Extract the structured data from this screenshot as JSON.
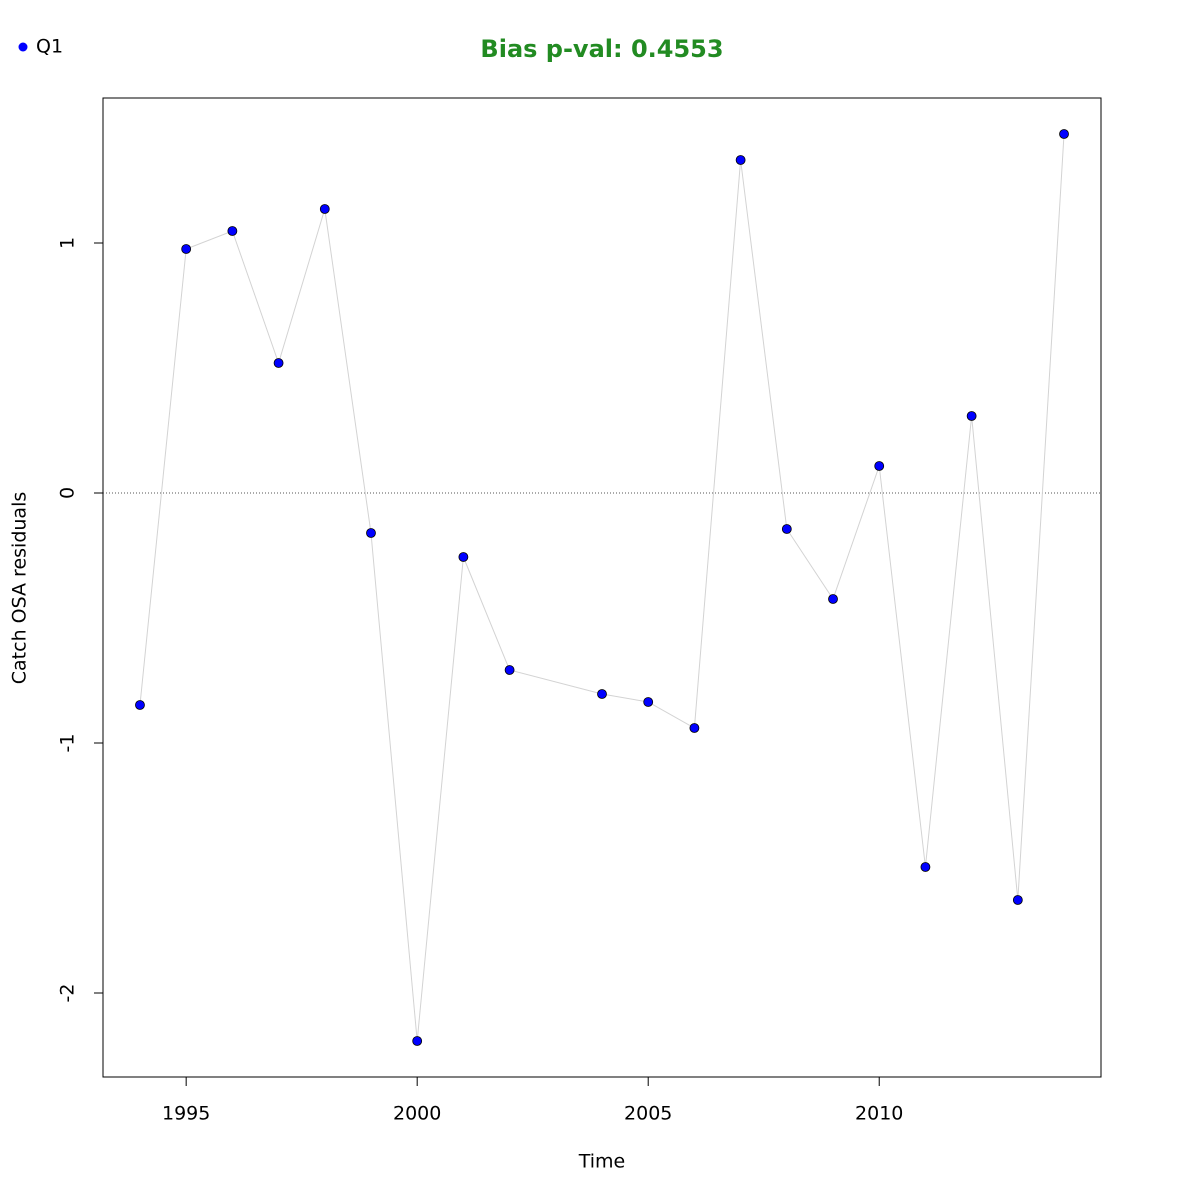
{
  "chart_data": {
    "type": "line",
    "title": "Bias p-val: 0.4553",
    "title_color": "#228b22",
    "x_label": "Time",
    "y_label": "Catch OSA residuals",
    "x": [
      1994,
      1995,
      1996,
      1997,
      1998,
      1999,
      2000,
      2001,
      2002,
      2004,
      2005,
      2006,
      2007,
      2008,
      2009,
      2010,
      2011,
      2012,
      2013,
      2014
    ],
    "series": [
      {
        "name": "Q1",
        "color": "#0000ff",
        "line_color": "#d3d3d3",
        "values": [
          -0.848,
          0.976,
          1.048,
          0.52,
          1.136,
          -0.16,
          -2.192,
          -0.256,
          -0.708,
          -0.804,
          -0.836,
          -0.94,
          1.332,
          -0.144,
          -0.424,
          0.108,
          -1.496,
          0.308,
          -1.628,
          1.436
        ]
      }
    ],
    "xlim": [
      1993.2,
      2014.8
    ],
    "ylim": [
      -2.336,
      1.58
    ],
    "xticks": [
      1995,
      2000,
      2005,
      2010
    ],
    "yticks": [
      -2,
      -1,
      0,
      1
    ],
    "reference_line": 0,
    "legend": "top-left"
  }
}
